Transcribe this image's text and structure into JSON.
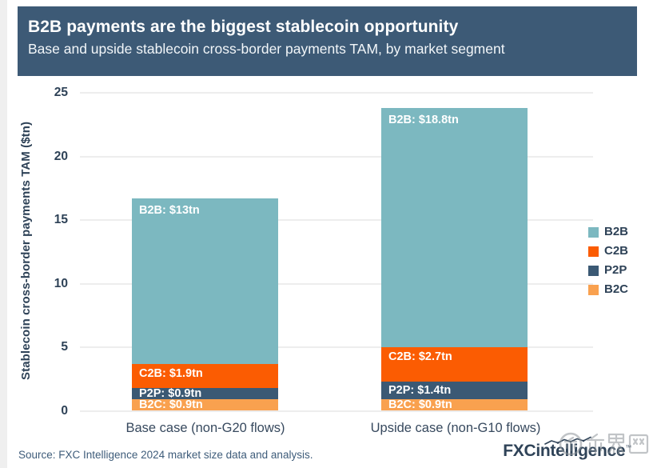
{
  "header": {
    "title": "B2B payments are the biggest stablecoin opportunity",
    "subtitle": "Base and upside stablecoin cross-border payments TAM, by market segment"
  },
  "chart_data": {
    "type": "bar",
    "stacked": true,
    "title": "B2B payments are the biggest stablecoin opportunity",
    "subtitle": "Base and upside stablecoin cross-border payments TAM, by market segment",
    "ylabel": "Stablecoin cross-border payments TAM ($tn)",
    "xlabel": "",
    "ylim": [
      0,
      25
    ],
    "yticks": [
      0,
      5,
      10,
      15,
      20,
      25
    ],
    "grid": true,
    "legend_position": "right",
    "categories": [
      "Base case (non-G20 flows)",
      "Upside case (non-G10 flows)"
    ],
    "series": [
      {
        "name": "B2C",
        "color": "#f9a14f",
        "values": [
          0.9,
          0.9
        ],
        "data_labels": [
          "B2C: $0.9tn",
          "B2C: $0.9tn"
        ]
      },
      {
        "name": "P2P",
        "color": "#3b5974",
        "values": [
          0.9,
          1.4
        ],
        "data_labels": [
          "P2P: $0.9tn",
          "P2P: $1.4tn"
        ]
      },
      {
        "name": "C2B",
        "color": "#fb5c02",
        "values": [
          1.9,
          2.7
        ],
        "data_labels": [
          "C2B: $1.9tn",
          "C2B: $2.7tn"
        ]
      },
      {
        "name": "B2B",
        "color": "#7cb8c0",
        "values": [
          13.0,
          18.8
        ],
        "data_labels": [
          "B2B: $13tn",
          "B2B: $18.8tn"
        ]
      }
    ],
    "legend": [
      {
        "label": "B2B",
        "color": "#7cb8c0"
      },
      {
        "label": "C2B",
        "color": "#fb5c02"
      },
      {
        "label": "P2P",
        "color": "#3b5974"
      },
      {
        "label": "B2C",
        "color": "#f9a14f"
      }
    ]
  },
  "footer": {
    "source": "Source: FXC Intelligence 2024 market size data and analysis.",
    "logo_text": "FXCintelligence",
    "logo_tm": "™",
    "watermark_text": "币界网"
  },
  "colors": {
    "header_bg": "#3d5a76",
    "axis_text": "#2e4257",
    "gridline": "#ededed",
    "source_text": "#3e5c7a",
    "logo_text": "#2f4358",
    "watermark": "#8f959b"
  }
}
